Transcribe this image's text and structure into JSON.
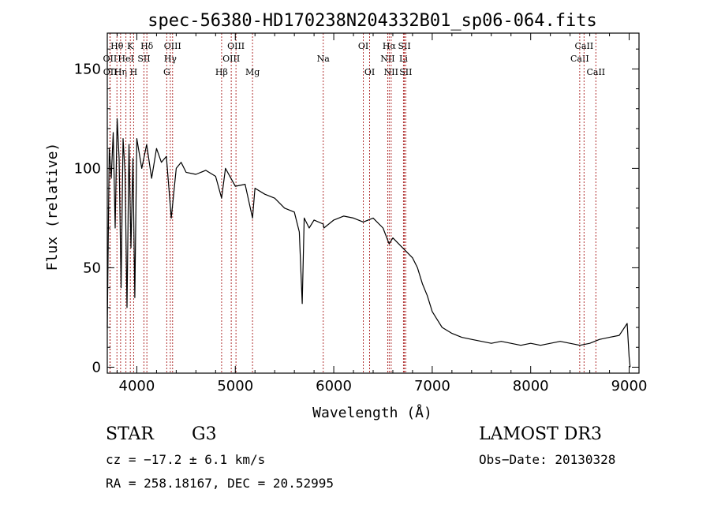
{
  "chart_data": {
    "type": "line",
    "title": "spec-56380-HD170238N204332B01_sp06-064.fits",
    "xlabel": "Wavelength (Å)",
    "ylabel": "Flux (relative)",
    "xlim": [
      3700,
      9100
    ],
    "ylim": [
      -3,
      168
    ],
    "xticks": [
      4000,
      5000,
      6000,
      7000,
      8000,
      9000
    ],
    "yticks": [
      0,
      50,
      100,
      150
    ],
    "series": [
      {
        "name": "spectrum",
        "x": [
          3700,
          3720,
          3740,
          3760,
          3780,
          3800,
          3820,
          3840,
          3860,
          3880,
          3900,
          3920,
          3940,
          3960,
          3980,
          4000,
          4050,
          4100,
          4150,
          4200,
          4250,
          4300,
          4350,
          4400,
          4450,
          4500,
          4600,
          4700,
          4800,
          4861,
          4900,
          5000,
          5100,
          5175,
          5200,
          5300,
          5400,
          5500,
          5600,
          5650,
          5680,
          5700,
          5750,
          5800,
          5893,
          5900,
          6000,
          6100,
          6200,
          6300,
          6400,
          6500,
          6563,
          6600,
          6700,
          6800,
          6850,
          6900,
          6950,
          7000,
          7050,
          7100,
          7200,
          7300,
          7400,
          7500,
          7600,
          7700,
          7800,
          7900,
          8000,
          8100,
          8200,
          8300,
          8400,
          8500,
          8600,
          8700,
          8800,
          8900,
          8980,
          9000,
          9010
        ],
        "y": [
          20,
          110,
          95,
          118,
          70,
          125,
          105,
          40,
          115,
          98,
          30,
          112,
          60,
          105,
          35,
          115,
          100,
          112,
          95,
          110,
          103,
          106,
          75,
          100,
          103,
          98,
          97,
          99,
          96,
          85,
          100,
          91,
          92,
          75,
          90,
          87,
          85,
          80,
          78,
          68,
          32,
          75,
          70,
          74,
          72,
          70,
          74,
          76,
          75,
          73,
          75,
          70,
          62,
          65,
          60,
          55,
          50,
          42,
          36,
          28,
          24,
          20,
          17,
          15,
          14,
          13,
          12,
          13,
          12,
          11,
          12,
          11,
          12,
          13,
          12,
          11,
          12,
          14,
          15,
          16,
          22,
          5,
          0
        ]
      }
    ],
    "line_markers": [
      {
        "label": "OII",
        "x": 3727,
        "row": 2
      },
      {
        "label": "OII",
        "x": 3729,
        "row": 3
      },
      {
        "label": "Hθ",
        "x": 3798,
        "row": 1
      },
      {
        "label": "Hη",
        "x": 3835,
        "row": 3
      },
      {
        "label": "HeI",
        "x": 3889,
        "row": 2
      },
      {
        "label": "K",
        "x": 3934,
        "row": 1
      },
      {
        "label": "H",
        "x": 3968,
        "row": 3
      },
      {
        "label": "SII",
        "x": 4072,
        "row": 2
      },
      {
        "label": "Hδ",
        "x": 4102,
        "row": 1
      },
      {
        "label": "G",
        "x": 4304,
        "row": 3
      },
      {
        "label": "OIII",
        "x": 4363,
        "row": 1
      },
      {
        "label": "Hγ",
        "x": 4340,
        "row": 2
      },
      {
        "label": "Hβ",
        "x": 4861,
        "row": 3
      },
      {
        "label": "OIII",
        "x": 4959,
        "row": 2
      },
      {
        "label": "OIII",
        "x": 5007,
        "row": 1
      },
      {
        "label": "Mg",
        "x": 5175,
        "row": 3
      },
      {
        "label": "Na",
        "x": 5893,
        "row": 2
      },
      {
        "label": "OI",
        "x": 6300,
        "row": 1
      },
      {
        "label": "OI",
        "x": 6364,
        "row": 3
      },
      {
        "label": "NII",
        "x": 6548,
        "row": 2
      },
      {
        "label": "Hα",
        "x": 6563,
        "row": 1
      },
      {
        "label": "NII",
        "x": 6583,
        "row": 3
      },
      {
        "label": "Li",
        "x": 6708,
        "row": 2
      },
      {
        "label": "SII",
        "x": 6717,
        "row": 1
      },
      {
        "label": "SII",
        "x": 6731,
        "row": 3
      },
      {
        "label": "CaII",
        "x": 8498,
        "row": 2
      },
      {
        "label": "CaII",
        "x": 8542,
        "row": 1
      },
      {
        "label": "CaII",
        "x": 8662,
        "row": 3
      }
    ],
    "colors": {
      "spectrum": "#000000",
      "markers": "#b03030",
      "axes": "#000000"
    }
  },
  "info": {
    "class": "STAR",
    "subclass": "G3",
    "cz": "cz = −17.2 ± 6.1 km/s",
    "coords": "RA = 258.18167, DEC =  20.52995",
    "survey": "LAMOST DR3",
    "obs_date": "Obs−Date: 20130328"
  }
}
